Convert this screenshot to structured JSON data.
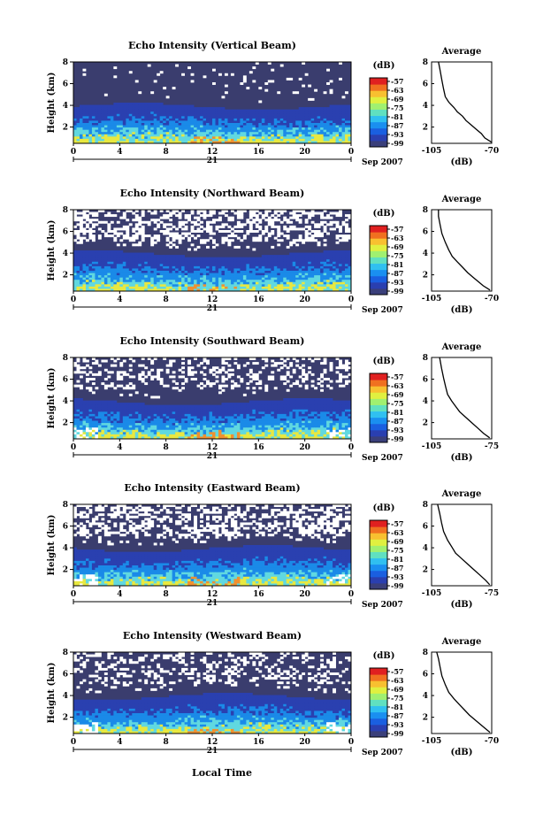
{
  "figure": {
    "xlabel_bottom": "Local Time",
    "date_label": "Sep 2007",
    "day_label": "21",
    "colorbar_unit": "(dB)",
    "colorbar_ticks": [
      "-57",
      "-63",
      "-69",
      "-75",
      "-81",
      "-87",
      "-93",
      "-99"
    ],
    "colorbar_colors": [
      "#3a3f7a",
      "#2a3fb0",
      "#1a5fe0",
      "#1a8ff0",
      "#30c0f0",
      "#60e0c0",
      "#a0f070",
      "#e0f040",
      "#f8c030",
      "#f07020",
      "#e02020"
    ],
    "heatmap_colors": {
      "background": "#3a3d6e",
      "low": "#2a40b0",
      "mid": "#1a8ae8",
      "high": "#60d8e0",
      "peak": "#e8e840",
      "hot": "#f09030",
      "missing": "#ffffff"
    }
  },
  "chart_data": [
    {
      "type": "heatmap",
      "title": "Echo Intensity (Vertical Beam)",
      "ylabel": "Height (km)",
      "xlim": [
        0,
        24
      ],
      "ylim": [
        0.5,
        8
      ],
      "x_ticks": [
        "0",
        "4",
        "8",
        "12",
        "16",
        "20",
        "0"
      ],
      "y_ticks": [
        "2",
        "4",
        "6",
        "8"
      ],
      "colorbar_label": "(dB)",
      "colorbar_range": [
        -99,
        -57
      ],
      "average_profile": {
        "title": "Average",
        "xlabel": "(dB)",
        "x_ticks": [
          "-105",
          "-70"
        ],
        "y_ticks": [
          "2",
          "4",
          "6",
          "8"
        ],
        "xlim": [
          -105,
          -70
        ],
        "ylim": [
          0.5,
          8
        ],
        "points": [
          [
            -70,
            0.6
          ],
          [
            -74,
            1.0
          ],
          [
            -76,
            1.4
          ],
          [
            -79,
            1.8
          ],
          [
            -82,
            2.2
          ],
          [
            -85,
            2.6
          ],
          [
            -87,
            3.0
          ],
          [
            -90,
            3.4
          ],
          [
            -92,
            3.8
          ],
          [
            -95,
            4.3
          ],
          [
            -97,
            4.8
          ],
          [
            -98,
            5.5
          ],
          [
            -99,
            6.3
          ],
          [
            -100,
            7.2
          ],
          [
            -101,
            8.0
          ]
        ]
      }
    },
    {
      "type": "heatmap",
      "title": "Echo Intensity (Northward Beam)",
      "ylabel": "Height (km)",
      "xlim": [
        0,
        24
      ],
      "ylim": [
        0.5,
        8
      ],
      "x_ticks": [
        "0",
        "4",
        "8",
        "12",
        "16",
        "20",
        "0"
      ],
      "y_ticks": [
        "2",
        "4",
        "6",
        "8"
      ],
      "colorbar_label": "(dB)",
      "colorbar_range": [
        -99,
        -57
      ],
      "average_profile": {
        "title": "Average",
        "xlabel": "(dB)",
        "x_ticks": [
          "-105",
          "-70"
        ],
        "y_ticks": [
          "2",
          "4",
          "6",
          "8"
        ],
        "xlim": [
          -105,
          -70
        ],
        "ylim": [
          0.5,
          8
        ],
        "points": [
          [
            -71,
            0.6
          ],
          [
            -75,
            1.0
          ],
          [
            -78,
            1.4
          ],
          [
            -81,
            1.8
          ],
          [
            -84,
            2.2
          ],
          [
            -87,
            2.7
          ],
          [
            -90,
            3.2
          ],
          [
            -93,
            3.7
          ],
          [
            -95,
            4.3
          ],
          [
            -97,
            5.0
          ],
          [
            -99,
            5.8
          ],
          [
            -100,
            6.6
          ],
          [
            -101,
            7.4
          ],
          [
            -101,
            8.0
          ]
        ]
      }
    },
    {
      "type": "heatmap",
      "title": "Echo Intensity (Southward Beam)",
      "ylabel": "Height (km)",
      "xlim": [
        0,
        24
      ],
      "ylim": [
        0.5,
        8
      ],
      "x_ticks": [
        "0",
        "4",
        "8",
        "12",
        "16",
        "20",
        "0"
      ],
      "y_ticks": [
        "2",
        "4",
        "6",
        "8"
      ],
      "colorbar_label": "(dB)",
      "colorbar_range": [
        -99,
        -57
      ],
      "average_profile": {
        "title": "Average",
        "xlabel": "(dB)",
        "x_ticks": [
          "-105",
          "-75"
        ],
        "y_ticks": [
          "2",
          "4",
          "6",
          "8"
        ],
        "xlim": [
          -105,
          -75
        ],
        "ylim": [
          0.5,
          8
        ],
        "points": [
          [
            -76,
            0.6
          ],
          [
            -79,
            1.0
          ],
          [
            -82,
            1.5
          ],
          [
            -85,
            2.0
          ],
          [
            -88,
            2.5
          ],
          [
            -91,
            3.0
          ],
          [
            -93,
            3.5
          ],
          [
            -95,
            4.0
          ],
          [
            -97,
            4.6
          ],
          [
            -98,
            5.3
          ],
          [
            -99,
            6.1
          ],
          [
            -100,
            7.0
          ],
          [
            -101,
            8.0
          ]
        ]
      }
    },
    {
      "type": "heatmap",
      "title": "Echo Intensity (Eastward Beam)",
      "ylabel": "Height (km)",
      "xlim": [
        0,
        24
      ],
      "ylim": [
        0.5,
        8
      ],
      "x_ticks": [
        "0",
        "4",
        "8",
        "12",
        "16",
        "20",
        "0"
      ],
      "y_ticks": [
        "2",
        "4",
        "6",
        "8"
      ],
      "colorbar_label": "(dB)",
      "colorbar_range": [
        -99,
        -57
      ],
      "average_profile": {
        "title": "Average",
        "xlabel": "(dB)",
        "x_ticks": [
          "-105",
          "-75"
        ],
        "y_ticks": [
          "2",
          "4",
          "6",
          "8"
        ],
        "xlim": [
          -105,
          -75
        ],
        "ylim": [
          0.5,
          8
        ],
        "points": [
          [
            -76,
            0.6
          ],
          [
            -78,
            1.0
          ],
          [
            -81,
            1.5
          ],
          [
            -84,
            2.0
          ],
          [
            -87,
            2.5
          ],
          [
            -90,
            3.0
          ],
          [
            -93,
            3.5
          ],
          [
            -95,
            4.1
          ],
          [
            -97,
            4.7
          ],
          [
            -99,
            5.5
          ],
          [
            -100,
            6.3
          ],
          [
            -101,
            7.2
          ],
          [
            -102,
            8.0
          ]
        ]
      }
    },
    {
      "type": "heatmap",
      "title": "Echo Intensity (Westward Beam)",
      "ylabel": "Height (km)",
      "xlim": [
        0,
        24
      ],
      "ylim": [
        0.5,
        8
      ],
      "x_ticks": [
        "0",
        "4",
        "8",
        "12",
        "16",
        "20",
        "0"
      ],
      "y_ticks": [
        "2",
        "4",
        "6",
        "8"
      ],
      "colorbar_label": "(dB)",
      "colorbar_range": [
        -99,
        -57
      ],
      "average_profile": {
        "title": "Average",
        "xlabel": "(dB)",
        "x_ticks": [
          "-105",
          "-70"
        ],
        "y_ticks": [
          "2",
          "4",
          "6",
          "8"
        ],
        "xlim": [
          -105,
          -70
        ],
        "ylim": [
          0.5,
          8
        ],
        "points": [
          [
            -71,
            0.6
          ],
          [
            -74,
            1.0
          ],
          [
            -77,
            1.4
          ],
          [
            -80,
            1.8
          ],
          [
            -83,
            2.2
          ],
          [
            -86,
            2.7
          ],
          [
            -89,
            3.2
          ],
          [
            -92,
            3.7
          ],
          [
            -95,
            4.3
          ],
          [
            -97,
            5.0
          ],
          [
            -99,
            5.8
          ],
          [
            -100,
            6.6
          ],
          [
            -101,
            7.4
          ],
          [
            -102,
            8.0
          ]
        ]
      }
    }
  ]
}
